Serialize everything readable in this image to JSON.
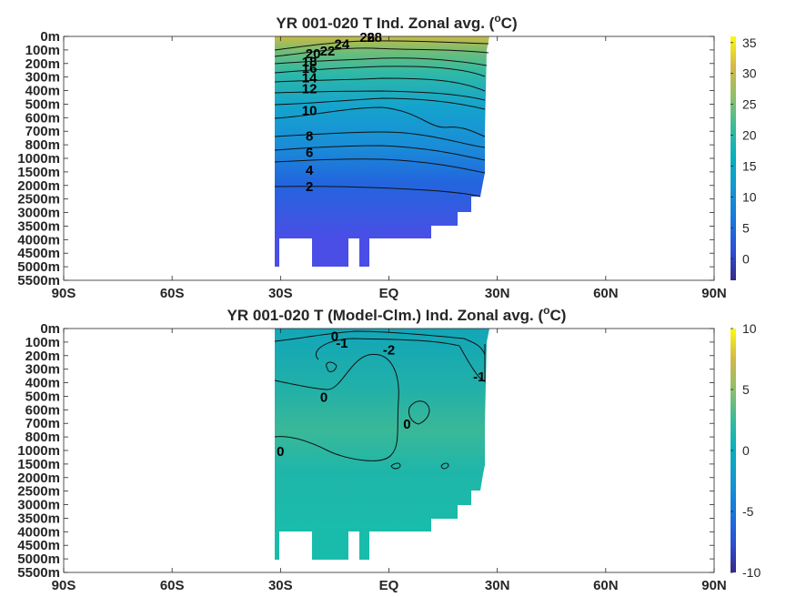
{
  "chart_data": [
    {
      "type": "heatmap",
      "title": "YR 001-020 T Ind. Zonal avg. (",
      "title_sup": "o",
      "title_end": "C)",
      "x_ticks": [
        "90S",
        "60S",
        "30S",
        "EQ",
        "30N",
        "60N",
        "90N"
      ],
      "x_values": [
        -90,
        -60,
        -30,
        0,
        30,
        60,
        90
      ],
      "y_ticks": [
        "0m",
        "100m",
        "200m",
        "300m",
        "400m",
        "500m",
        "600m",
        "700m",
        "800m",
        "1000m",
        "1500m",
        "2000m",
        "2500m",
        "3000m",
        "3500m",
        "4000m",
        "4500m",
        "5000m",
        "5500m"
      ],
      "colorbar": {
        "ticks": [
          35,
          30,
          25,
          20,
          15,
          10,
          5,
          0
        ],
        "range": [
          -3.5,
          36
        ]
      },
      "contour_labels": [
        {
          "text": "28",
          "x": -4,
          "depth": 0
        },
        {
          "text": "26",
          "x": -6,
          "depth": 0
        },
        {
          "text": "24",
          "x": -13,
          "depth": 50
        },
        {
          "text": "22",
          "x": -17,
          "depth": 100
        },
        {
          "text": "20",
          "x": -21,
          "depth": 120
        },
        {
          "text": "18",
          "x": -22,
          "depth": 180
        },
        {
          "text": "16",
          "x": -22,
          "depth": 230
        },
        {
          "text": "14",
          "x": -22,
          "depth": 300
        },
        {
          "text": "12",
          "x": -22,
          "depth": 380
        },
        {
          "text": "10",
          "x": -22,
          "depth": 540
        },
        {
          "text": "8",
          "x": -22,
          "depth": 730
        },
        {
          "text": "6",
          "x": -22,
          "depth": 900
        },
        {
          "text": "4",
          "x": -22,
          "depth": 1400
        },
        {
          "text": "2",
          "x": -22,
          "depth": 2000
        }
      ]
    },
    {
      "type": "heatmap",
      "title": "YR 001-020 T (Model-Clm.) Ind. Zonal avg. (",
      "title_sup": "o",
      "title_end": "C)",
      "x_ticks": [
        "90S",
        "60S",
        "30S",
        "EQ",
        "30N",
        "60N",
        "90N"
      ],
      "x_values": [
        -90,
        -60,
        -30,
        0,
        30,
        60,
        90
      ],
      "y_ticks": [
        "0m",
        "100m",
        "200m",
        "300m",
        "400m",
        "500m",
        "600m",
        "700m",
        "800m",
        "1000m",
        "1500m",
        "2000m",
        "2500m",
        "3000m",
        "3500m",
        "4000m",
        "4500m",
        "5000m",
        "5500m"
      ],
      "colorbar": {
        "ticks": [
          10,
          5,
          0,
          -5,
          -10
        ],
        "range": [
          -10,
          10
        ]
      },
      "contour_labels": [
        {
          "text": "0",
          "x": -15,
          "depth": 50
        },
        {
          "text": "-1",
          "x": -13,
          "depth": 100
        },
        {
          "text": "-2",
          "x": 0,
          "depth": 150
        },
        {
          "text": "-1",
          "x": 25,
          "depth": 350
        },
        {
          "text": "0",
          "x": -18,
          "depth": 500
        },
        {
          "text": "0",
          "x": 5,
          "depth": 700
        },
        {
          "text": "0",
          "x": -30,
          "depth": 1000
        }
      ]
    }
  ]
}
